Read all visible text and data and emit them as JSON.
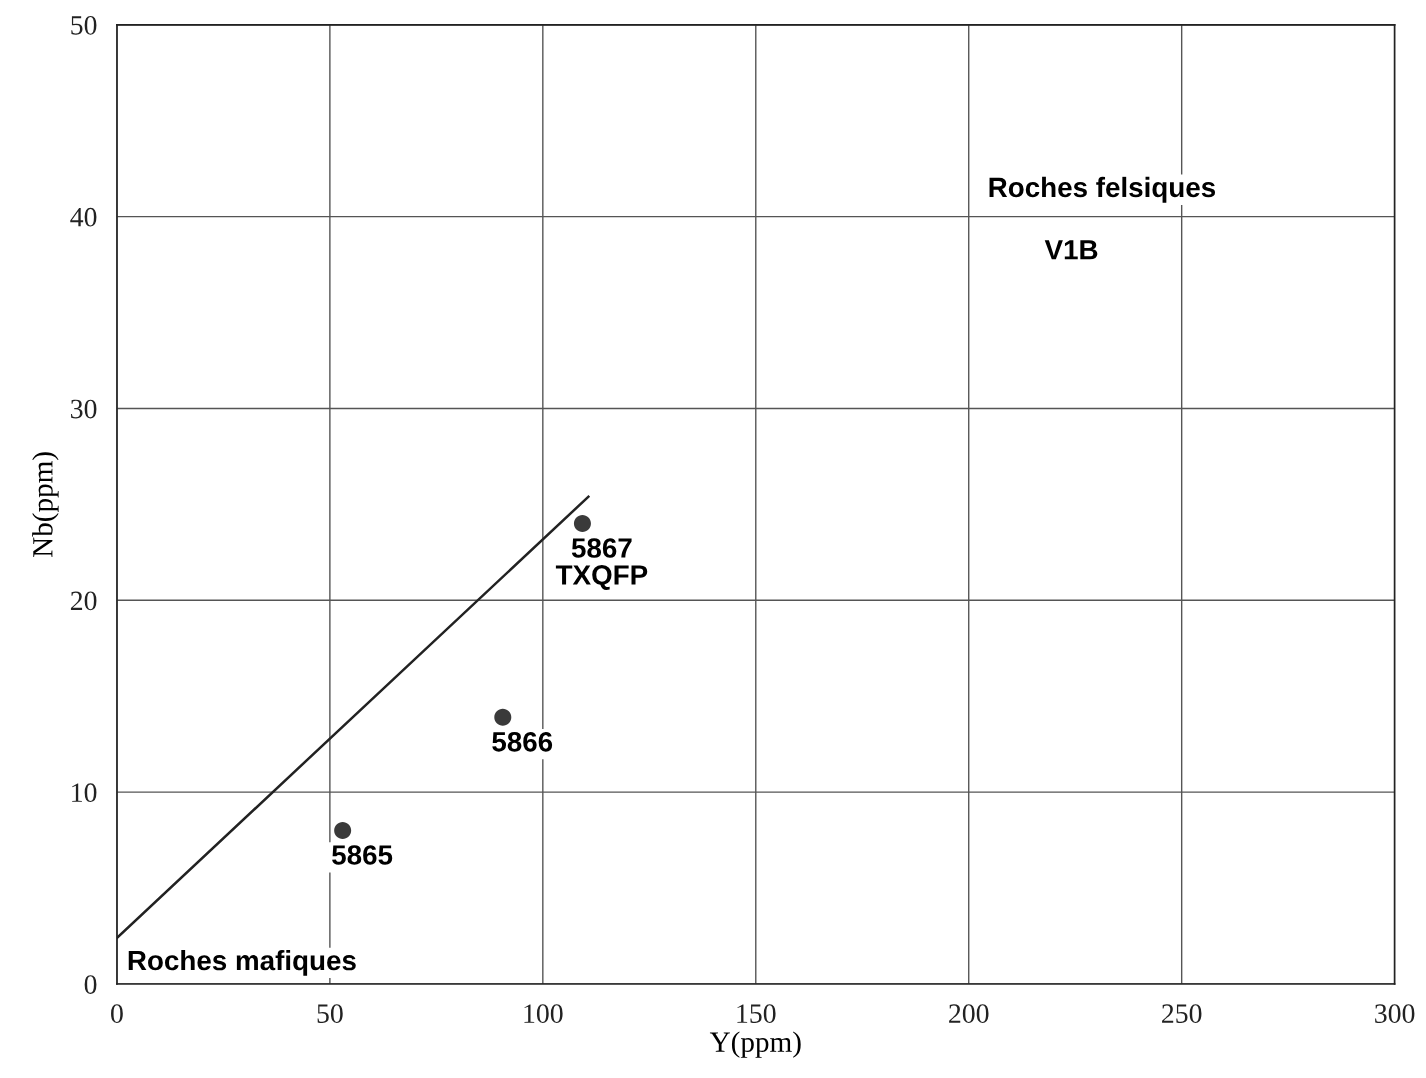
{
  "chart_data": {
    "type": "scatter",
    "xlabel": "Y(ppm)",
    "ylabel": "Nb(ppm)",
    "xlim": [
      0,
      300
    ],
    "ylim": [
      0,
      50
    ],
    "xticks": [
      0,
      50,
      100,
      150,
      200,
      250,
      300
    ],
    "yticks": [
      0,
      10,
      20,
      30,
      40,
      50
    ],
    "grid": true,
    "marker": "circle",
    "series": [
      {
        "color": "#3a3a3a",
        "x": [
          53,
          90.6,
          109.3
        ],
        "values": [
          8,
          13.9,
          24
        ]
      },
      {
        "type": "line",
        "color": "#222222",
        "marker": "none",
        "line_style": "solid",
        "x": [
          0,
          110.7
        ],
        "values": [
          2.4,
          25.4
        ]
      }
    ],
    "annotations": [
      {
        "text": "5865",
        "x": 53,
        "y": 8
      },
      {
        "text": "5866",
        "x": 90.6,
        "y": 13.9
      },
      {
        "text": "5867\nTXQFP",
        "x": 109.3,
        "y": 24
      },
      "Roches felsiques",
      "V1B",
      "Roches mafiques"
    ]
  }
}
